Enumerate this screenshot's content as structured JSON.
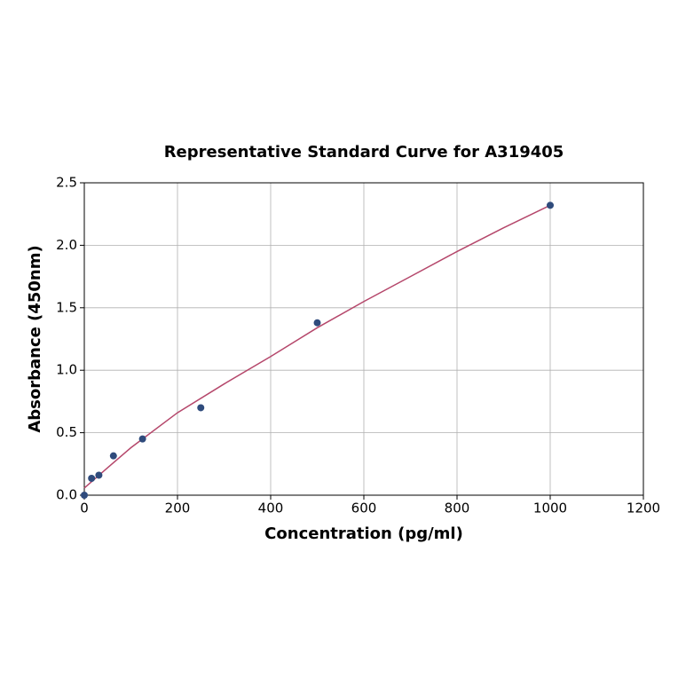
{
  "chart_data": {
    "type": "scatter",
    "title": "Representative Standard Curve for A319405",
    "x_label": "Concentration (pg/ml)",
    "y_label": "Absorbance (450nm)",
    "xlim": [
      0,
      1200
    ],
    "xticks": [
      0,
      200,
      400,
      600,
      800,
      1000,
      1200
    ],
    "ylim": [
      0,
      2.5
    ],
    "yticks": [
      {
        "value": 0,
        "label": "0.0"
      },
      0.5,
      {
        "value": 1,
        "label": "1.0"
      },
      1.5,
      {
        "value": 2,
        "label": "2.0"
      },
      2.5
    ],
    "grid": true,
    "series": [
      {
        "style": "markers",
        "color": "#2f4b7c",
        "x": [
          0,
          15.6,
          31.25,
          62.5,
          125,
          250,
          500,
          1000
        ],
        "values": [
          0.0,
          0.135,
          0.16,
          0.315,
          0.45,
          0.7,
          1.38,
          2.32
        ]
      },
      {
        "style": "line",
        "color": "#b5476b",
        "x": [
          0,
          50,
          100,
          200,
          300,
          400,
          500,
          600,
          700,
          800,
          900,
          1000
        ],
        "values": [
          0.057,
          0.22,
          0.38,
          0.66,
          0.89,
          1.11,
          1.34,
          1.55,
          1.75,
          1.95,
          2.14,
          2.32
        ]
      }
    ]
  }
}
